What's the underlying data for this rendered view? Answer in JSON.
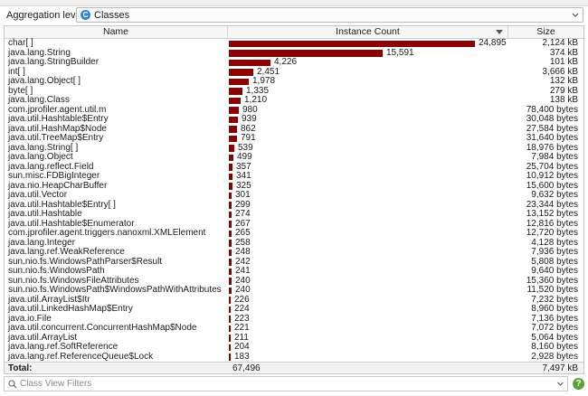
{
  "aggregation": {
    "label": "Aggregation level:",
    "value": "Classes",
    "icon": "class-icon"
  },
  "table": {
    "columns": {
      "name": "Name",
      "count": "Instance Count",
      "size": "Size"
    },
    "sort": {
      "column": "Instance Count",
      "direction": "descending"
    },
    "bar_color": "#8b0000",
    "max_count": 24895,
    "rows": [
      {
        "name": "char[ ]",
        "count": 24895,
        "count_label": "24,895",
        "size": "2,124 kB"
      },
      {
        "name": "java.lang.String",
        "count": 15591,
        "count_label": "15,591",
        "size": "374 kB"
      },
      {
        "name": "java.lang.StringBuilder",
        "count": 4226,
        "count_label": "4,226",
        "size": "101 kB"
      },
      {
        "name": "int[ ]",
        "count": 2451,
        "count_label": "2,451",
        "size": "3,666 kB"
      },
      {
        "name": "java.lang.Object[ ]",
        "count": 1978,
        "count_label": "1,978",
        "size": "132 kB"
      },
      {
        "name": "byte[ ]",
        "count": 1335,
        "count_label": "1,335",
        "size": "279 kB"
      },
      {
        "name": "java.lang.Class",
        "count": 1210,
        "count_label": "1,210",
        "size": "138 kB"
      },
      {
        "name": "com.jprofiler.agent.util.m",
        "count": 980,
        "count_label": "980",
        "size": "78,400 bytes"
      },
      {
        "name": "java.util.Hashtable$Entry",
        "count": 939,
        "count_label": "939",
        "size": "30,048 bytes"
      },
      {
        "name": "java.util.HashMap$Node",
        "count": 862,
        "count_label": "862",
        "size": "27,584 bytes"
      },
      {
        "name": "java.util.TreeMap$Entry",
        "count": 791,
        "count_label": "791",
        "size": "31,640 bytes"
      },
      {
        "name": "java.lang.String[ ]",
        "count": 539,
        "count_label": "539",
        "size": "18,976 bytes"
      },
      {
        "name": "java.lang.Object",
        "count": 499,
        "count_label": "499",
        "size": "7,984 bytes"
      },
      {
        "name": "java.lang.reflect.Field",
        "count": 357,
        "count_label": "357",
        "size": "25,704 bytes"
      },
      {
        "name": "sun.misc.FDBigInteger",
        "count": 341,
        "count_label": "341",
        "size": "10,912 bytes"
      },
      {
        "name": "java.nio.HeapCharBuffer",
        "count": 325,
        "count_label": "325",
        "size": "15,600 bytes"
      },
      {
        "name": "java.util.Vector",
        "count": 301,
        "count_label": "301",
        "size": "9,632 bytes"
      },
      {
        "name": "java.util.Hashtable$Entry[ ]",
        "count": 299,
        "count_label": "299",
        "size": "23,344 bytes"
      },
      {
        "name": "java.util.Hashtable",
        "count": 274,
        "count_label": "274",
        "size": "13,152 bytes"
      },
      {
        "name": "java.util.Hashtable$Enumerator",
        "count": 267,
        "count_label": "267",
        "size": "12,816 bytes"
      },
      {
        "name": "com.jprofiler.agent.triggers.nanoxml.XMLElement",
        "count": 265,
        "count_label": "265",
        "size": "12,720 bytes"
      },
      {
        "name": "java.lang.Integer",
        "count": 258,
        "count_label": "258",
        "size": "4,128 bytes"
      },
      {
        "name": "java.lang.ref.WeakReference",
        "count": 248,
        "count_label": "248",
        "size": "7,936 bytes"
      },
      {
        "name": "sun.nio.fs.WindowsPathParser$Result",
        "count": 242,
        "count_label": "242",
        "size": "5,808 bytes"
      },
      {
        "name": "sun.nio.fs.WindowsPath",
        "count": 241,
        "count_label": "241",
        "size": "9,640 bytes"
      },
      {
        "name": "sun.nio.fs.WindowsFileAttributes",
        "count": 240,
        "count_label": "240",
        "size": "15,360 bytes"
      },
      {
        "name": "sun.nio.fs.WindowsPath$WindowsPathWithAttributes",
        "count": 240,
        "count_label": "240",
        "size": "11,520 bytes"
      },
      {
        "name": "java.util.ArrayList$Itr",
        "count": 226,
        "count_label": "226",
        "size": "7,232 bytes"
      },
      {
        "name": "java.util.LinkedHashMap$Entry",
        "count": 224,
        "count_label": "224",
        "size": "8,960 bytes"
      },
      {
        "name": "java.io.File",
        "count": 223,
        "count_label": "223",
        "size": "7,136 bytes"
      },
      {
        "name": "java.util.concurrent.ConcurrentHashMap$Node",
        "count": 221,
        "count_label": "221",
        "size": "7,072 bytes"
      },
      {
        "name": "java.util.ArrayList",
        "count": 211,
        "count_label": "211",
        "size": "5,064 bytes"
      },
      {
        "name": "java.lang.ref.SoftReference",
        "count": 204,
        "count_label": "204",
        "size": "8,160 bytes"
      },
      {
        "name": "java.lang.ref.ReferenceQueue$Lock",
        "count": 183,
        "count_label": "183",
        "size": "2,928 bytes"
      }
    ],
    "total": {
      "label": "Total:",
      "count": "67,496",
      "size": "7,497 kB"
    }
  },
  "filter": {
    "placeholder": "Class View Filters",
    "value": ""
  },
  "help": {
    "label": "?",
    "icon": "help-icon"
  }
}
